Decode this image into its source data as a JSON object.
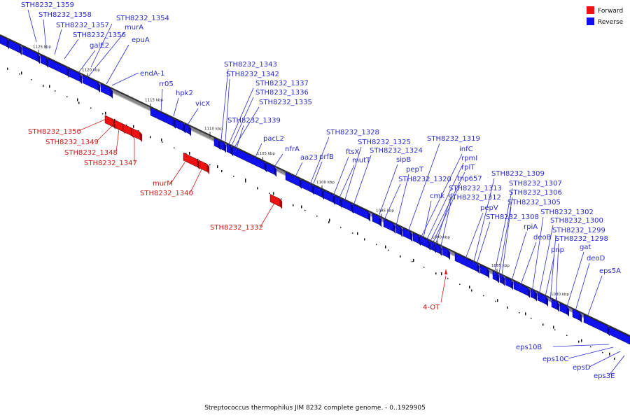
{
  "caption": "Streptococcus thermophilus JIM 8232 complete genome. - 0..1929905",
  "legend": [
    {
      "label": "Forward",
      "color": "#ee1111"
    },
    {
      "label": "Reverse",
      "color": "#1111ee"
    }
  ],
  "colors": {
    "forward": "#ee1111",
    "reverse": "#1111ee",
    "backbone": "#555555"
  },
  "ticks": [
    "1125 kbp",
    "1120 kbp",
    "1115 kbp",
    "1110 kbp",
    "1105 kbp",
    "1100 kbp",
    "1095 kbp",
    "1090 kbp",
    "1085 kbp",
    "1080 kbp"
  ],
  "reverse_labels": [
    "STH8232_1359",
    "STH8232_1358",
    "STH8232_1357",
    "STH8232_1356",
    "STH8232_1354",
    "murA",
    "galE2",
    "epuA",
    "endA-1",
    "rr05",
    "hpk2",
    "vicX",
    "STH8232_1343",
    "STH8232_1342",
    "STH8232_1337",
    "STH8232_1336",
    "STH8232_1335",
    "STH8232_1339",
    "pacL2",
    "nfrA",
    "aa23",
    "prfB",
    "STH8232_1328",
    "ftsX",
    "mutT",
    "STH8232_1325",
    "STH8232_1324",
    "sipB",
    "pepT",
    "STH8232_1320",
    "cmk",
    "STH8232_1319",
    "infC",
    "rpmI",
    "rplT",
    "tnp657",
    "STH8232_1313",
    "STH8232_1312",
    "pepV",
    "STH8232_1308",
    "STH8232_1309",
    "STH8232_1307",
    "STH8232_1306",
    "STH8232_1305",
    "rpiA",
    "deoB",
    "STH8232_1302",
    "STH8232_1300",
    "pnp",
    "STH8232_1299",
    "STH8232_1298",
    "gat",
    "deoD",
    "eps5A",
    "eps10B",
    "eps10C",
    "epsD",
    "eps3E"
  ],
  "forward_labels": [
    "STH8232_1350",
    "STH8232_1349",
    "STH8232_1348",
    "STH8232_1347",
    "murM",
    "STH8232_1340",
    "STH8232_1332"
  ],
  "other_labels": [
    "4-OT"
  ]
}
